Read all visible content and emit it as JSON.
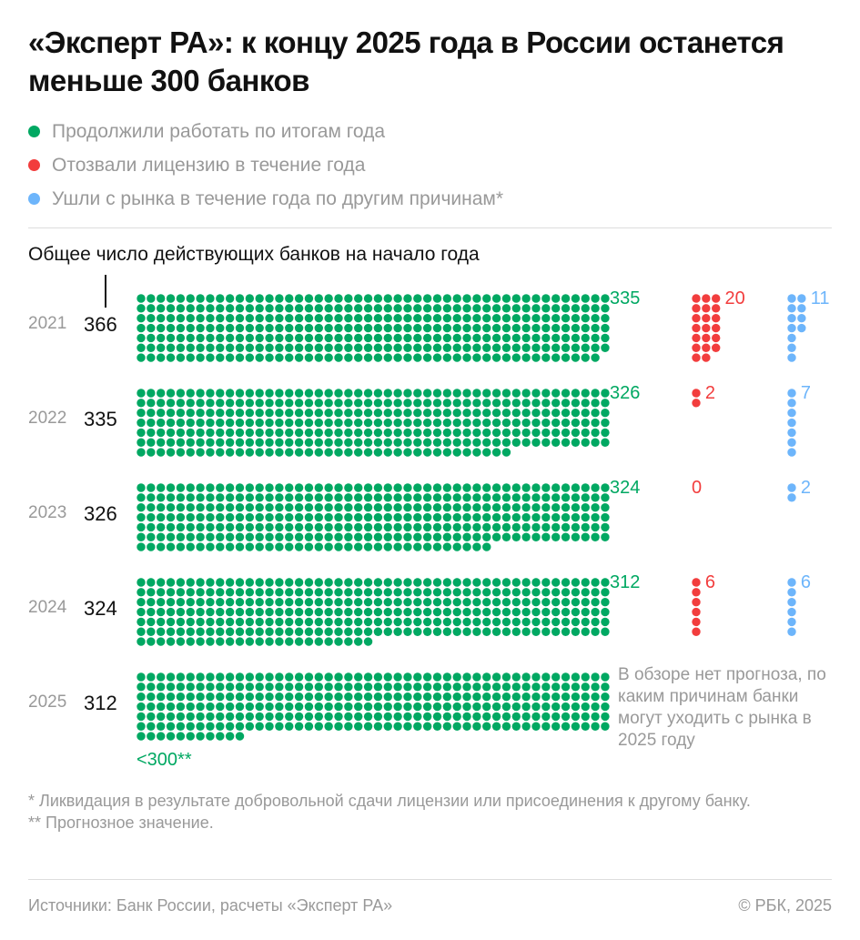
{
  "title": "«Эксперт РА»: к концу 2025 года в России останется меньше 300 банков",
  "colors": {
    "continued": "#00a862",
    "revoked": "#f23d3d",
    "other": "#6db5fb"
  },
  "chart_data": {
    "type": "dot-matrix",
    "title": "«Эксперт РА»: к концу 2025 года в России останется меньше 300 банков",
    "subtitle": "Общее число действующих банков на начало года",
    "legend": [
      "Продолжили работать по итогам года",
      "Отозвали лицензию в течение года",
      "Ушли с рынка в течение года по другим причинам*"
    ],
    "rows": [
      {
        "year": "2021",
        "total": "366",
        "continued": 335,
        "revoked": 20,
        "other": 11,
        "continued_label": "335",
        "revoked_label": "20",
        "other_label": "11"
      },
      {
        "year": "2022",
        "total": "335",
        "continued": 326,
        "revoked": 2,
        "other": 7,
        "continued_label": "326",
        "revoked_label": "2",
        "other_label": "7"
      },
      {
        "year": "2023",
        "total": "326",
        "continued": 324,
        "revoked": 0,
        "other": 2,
        "continued_label": "324",
        "revoked_label": "0",
        "other_label": "2"
      },
      {
        "year": "2024",
        "total": "324",
        "continued": 312,
        "revoked": 6,
        "other": 6,
        "continued_label": "312",
        "revoked_label": "6",
        "other_label": "6"
      },
      {
        "year": "2025",
        "total": "312",
        "continued": 299,
        "continued_label": "<300**"
      }
    ],
    "note": "В обзоре нет прогноза, по каким причинам банки могут уходить с рынка в 2025 году"
  },
  "footnotes": [
    "* Ликвидация в результате добровольной сдачи лицензии или присоединения к другому банку.",
    "** Прогнозное значение."
  ],
  "source": "Источники: Банк России, расчеты «Эксперт РА»",
  "copyright": "© РБК, 2025"
}
